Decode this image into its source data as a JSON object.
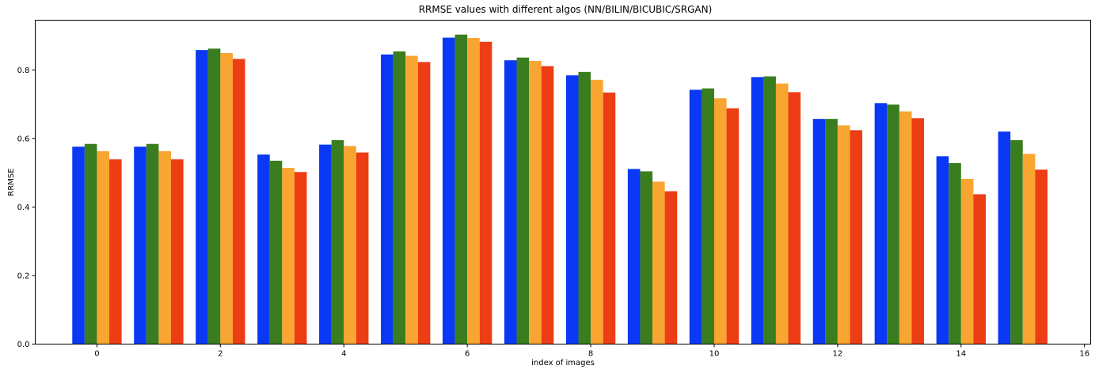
{
  "chart_data": {
    "type": "bar",
    "title": "RRMSE values with different algos (NN/BILIN/BICUBIC/SRGAN)",
    "xlabel": "index of images",
    "ylabel": "RRMSE",
    "xlim": [
      -1.0,
      16.1
    ],
    "ylim": [
      0.0,
      0.945
    ],
    "xticks": [
      0,
      2,
      4,
      6,
      8,
      10,
      12,
      14,
      16
    ],
    "yticks": [
      0.0,
      0.2,
      0.4,
      0.6,
      0.8
    ],
    "ytick_labels": [
      "0.0",
      "0.2",
      "0.4",
      "0.6",
      "0.8"
    ],
    "grid": false,
    "x": [
      0,
      1,
      2,
      3,
      4,
      5,
      6,
      7,
      8,
      9,
      10,
      11,
      12,
      13,
      14,
      15
    ],
    "series": [
      {
        "color": "#0a38f4",
        "values": [
          0.576,
          0.576,
          0.858,
          0.553,
          0.582,
          0.845,
          0.894,
          0.828,
          0.784,
          0.511,
          0.742,
          0.779,
          0.657,
          0.703,
          0.548,
          0.62
        ]
      },
      {
        "color": "#3a7d1f",
        "values": [
          0.584,
          0.584,
          0.862,
          0.535,
          0.595,
          0.854,
          0.903,
          0.836,
          0.794,
          0.504,
          0.746,
          0.781,
          0.657,
          0.699,
          0.528,
          0.595
        ]
      },
      {
        "color": "#f8a532",
        "values": [
          0.563,
          0.563,
          0.849,
          0.514,
          0.578,
          0.841,
          0.893,
          0.826,
          0.771,
          0.474,
          0.717,
          0.76,
          0.638,
          0.679,
          0.482,
          0.555
        ]
      },
      {
        "color": "#ed3d15",
        "values": [
          0.539,
          0.539,
          0.832,
          0.502,
          0.559,
          0.823,
          0.882,
          0.811,
          0.734,
          0.446,
          0.688,
          0.735,
          0.624,
          0.659,
          0.437,
          0.509
        ]
      }
    ]
  }
}
